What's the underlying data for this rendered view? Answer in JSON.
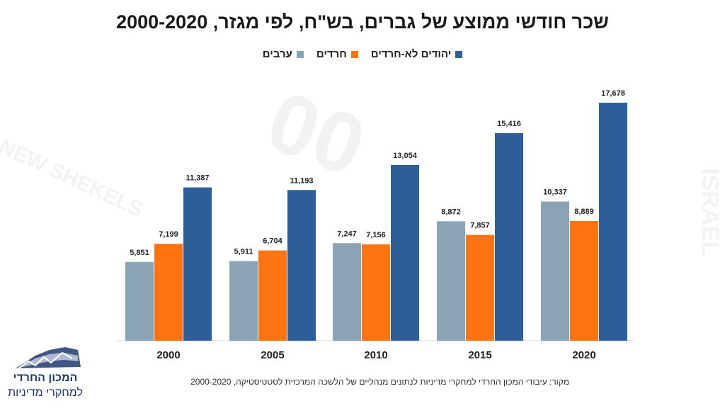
{
  "title": "שכר חודשי ממוצע של גברים, בש\"ח, לפי מגזר, 2000-2020",
  "colors": {
    "arabs": "#8aa3b5",
    "haredim": "#ff7410",
    "non_haredi_jews": "#2e5e99"
  },
  "chart_data": {
    "type": "bar",
    "title": "שכר חודשי ממוצע של גברים, בש\"ח, לפי מגזר, 2000-2020",
    "xlabel": "",
    "ylabel": "",
    "ylim": [
      0,
      20000
    ],
    "grid": false,
    "legend_position": "top-center",
    "categories": [
      "2000",
      "2005",
      "2010",
      "2015",
      "2020"
    ],
    "series": [
      {
        "key": "arabs",
        "name": "ערבים",
        "values": [
          5851,
          5911,
          7247,
          8872,
          10337
        ],
        "labels": [
          "5,851",
          "5,911",
          "7,247",
          "8,872",
          "10,337"
        ]
      },
      {
        "key": "haredim",
        "name": "חרדים",
        "values": [
          7199,
          6704,
          7156,
          7857,
          8889
        ],
        "labels": [
          "7,199",
          "6,704",
          "7,156",
          "7,857",
          "8,889"
        ]
      },
      {
        "key": "non_haredi_jews",
        "name": "יהודים לא-חרדים",
        "values": [
          11387,
          11193,
          13054,
          15416,
          17678
        ],
        "labels": [
          "11,387",
          "11,193",
          "13,054",
          "15,416",
          "17,678"
        ]
      }
    ]
  },
  "source": "מקור:  עיבודי המכון החרדי למחקרי מדיניות לנתונים מנהליים של הלשכה המרכזית לסטטיסטיקה, 2000-2020",
  "logo": {
    "line1": "המכון החרדי",
    "line2": "למחקרי מדיניות"
  }
}
